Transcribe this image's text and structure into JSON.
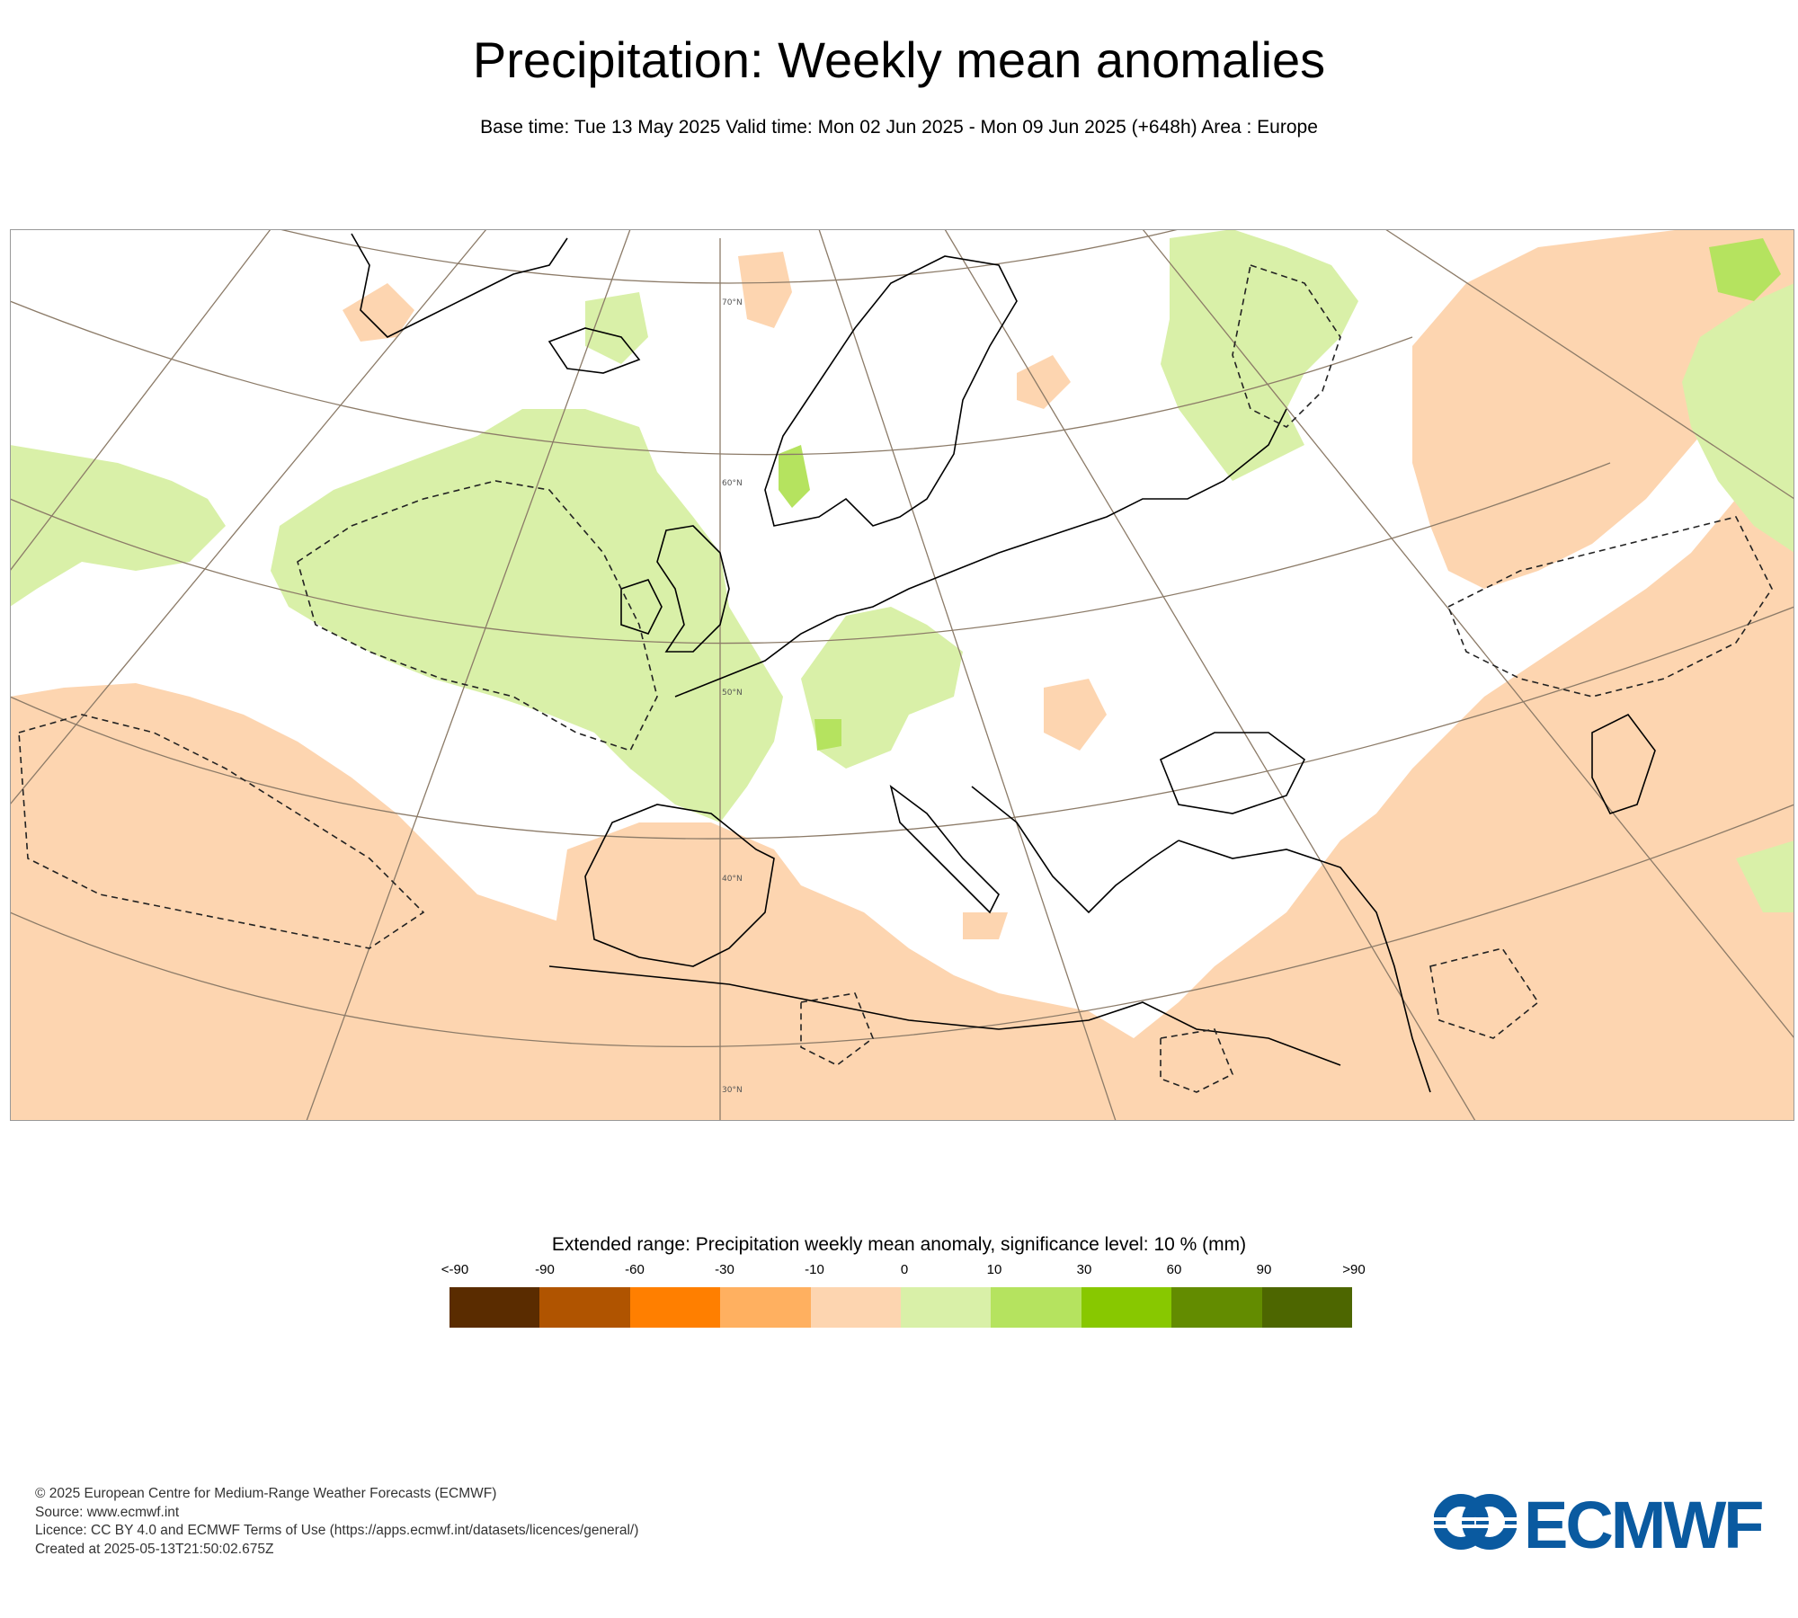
{
  "title": "Precipitation: Weekly mean anomalies",
  "subtitle": "Base time: Tue 13 May 2025 Valid time: Mon 02 Jun 2025 - Mon 09 Jun 2025 (+648h) Area : Europe",
  "map": {
    "latitude_labels": [
      "70°N",
      "60°N",
      "50°N",
      "40°N",
      "30°N"
    ],
    "colors": {
      "dry": "#fdd5b0",
      "wet": "#d9f0a8",
      "wet_strong": "#b5e35f",
      "border": "#333333",
      "coast": "#000000",
      "graticule": "#8c7b68"
    }
  },
  "legend": {
    "title": "Extended range: Precipitation weekly mean anomaly, significance level: 10 % (mm)",
    "ticks": [
      "<-90",
      "-90",
      "-60",
      "-30",
      "-10",
      "0",
      "10",
      "30",
      "60",
      "90",
      ">90"
    ],
    "colors": [
      "#5a2c00",
      "#b05400",
      "#ff7f00",
      "#ffb060",
      "#fdd5b0",
      "#d9f0a8",
      "#b5e35f",
      "#88c800",
      "#638c00",
      "#4d6600"
    ]
  },
  "footer": {
    "copyright": "© 2025 European Centre for Medium-Range Weather Forecasts (ECMWF)",
    "source": "Source: www.ecmwf.int",
    "licence": "Licence: CC BY 4.0 and ECMWF Terms of Use (https://apps.ecmwf.int/datasets/licences/general/)",
    "created": "Created at 2025-05-13T21:50:02.675Z"
  },
  "logo_text": "ECMWF"
}
